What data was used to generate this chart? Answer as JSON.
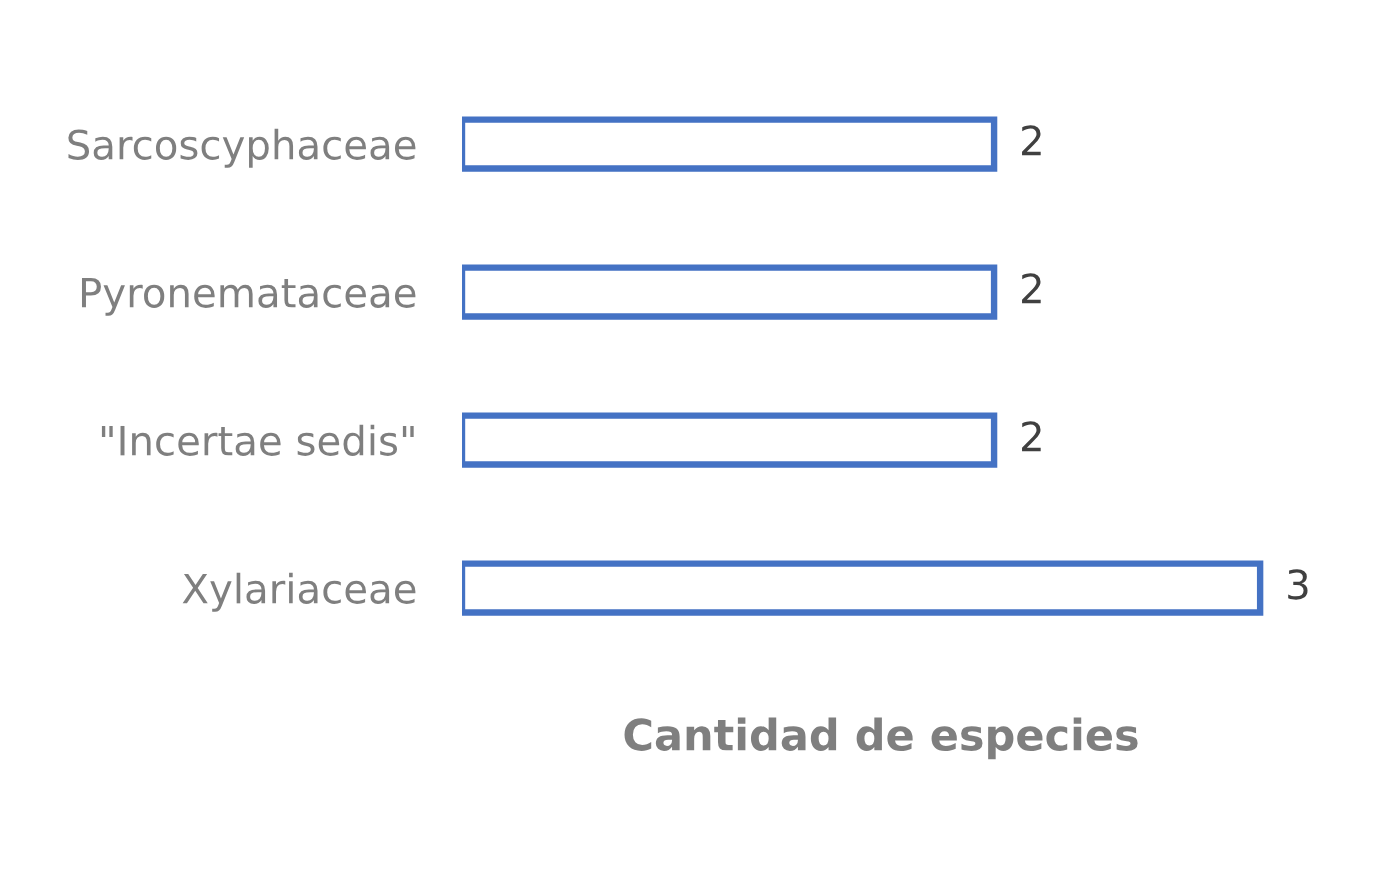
{
  "chart_data": {
    "type": "bar",
    "orientation": "horizontal",
    "categories": [
      "Sarcoscyphaceae",
      "Pyronemataceae",
      "\"Incertae sedis\"",
      "Xylariaceae"
    ],
    "values": [
      2,
      2,
      2,
      3
    ],
    "color": "#4472c4",
    "xlabel": "Cantidad de especies",
    "tick_labels": "y",
    "data_labels": true
  }
}
